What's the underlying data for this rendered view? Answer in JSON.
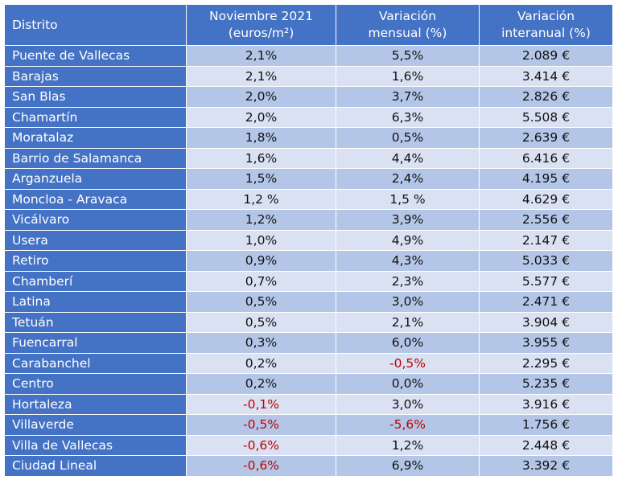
{
  "table": {
    "headers": [
      {
        "line1": "Distrito",
        "line2": ""
      },
      {
        "line1": "Noviembre 2021",
        "line2": "(euros/m²)"
      },
      {
        "line1": "Variación",
        "line2": "mensual (%)"
      },
      {
        "line1": "Variación",
        "line2": "interanual (%)"
      }
    ],
    "rows": [
      {
        "district": "Puente de Vallecas",
        "nov2021": "2,1%",
        "mensual": "5,5%",
        "interanual": "2.089 €"
      },
      {
        "district": "Barajas",
        "nov2021": "2,1%",
        "mensual": "1,6%",
        "interanual": "3.414 €"
      },
      {
        "district": "San Blas",
        "nov2021": "2,0%",
        "mensual": "3,7%",
        "interanual": "2.826 €"
      },
      {
        "district": "Chamartín",
        "nov2021": "2,0%",
        "mensual": "6,3%",
        "interanual": "5.508 €"
      },
      {
        "district": "Moratalaz",
        "nov2021": "1,8%",
        "mensual": "0,5%",
        "interanual": "2.639 €"
      },
      {
        "district": "Barrio de Salamanca",
        "nov2021": "1,6%",
        "mensual": "4,4%",
        "interanual": "6.416 €"
      },
      {
        "district": "Arganzuela",
        "nov2021": "1,5%",
        "mensual": "2,4%",
        "interanual": "4.195 €"
      },
      {
        "district": "Moncloa - Aravaca",
        "nov2021": "1,2 %",
        "mensual": "1,5 %",
        "interanual": "4.629 €"
      },
      {
        "district": "Vicálvaro",
        "nov2021": "1,2%",
        "mensual": "3,9%",
        "interanual": "2.556 €"
      },
      {
        "district": "Usera",
        "nov2021": "1,0%",
        "mensual": "4,9%",
        "interanual": "2.147 €"
      },
      {
        "district": "Retiro",
        "nov2021": "0,9%",
        "mensual": "4,3%",
        "interanual": "5.033 €"
      },
      {
        "district": "Chamberí",
        "nov2021": "0,7%",
        "mensual": "2,3%",
        "interanual": "5.577 €"
      },
      {
        "district": "Latina",
        "nov2021": "0,5%",
        "mensual": "3,0%",
        "interanual": "2.471 €"
      },
      {
        "district": "Tetuán",
        "nov2021": "0,5%",
        "mensual": "2,1%",
        "interanual": "3.904 €"
      },
      {
        "district": "Fuencarral",
        "nov2021": "0,3%",
        "mensual": "6,0%",
        "interanual": "3.955 €"
      },
      {
        "district": "Carabanchel",
        "nov2021": "0,2%",
        "mensual": "-0,5%",
        "interanual": "2.295 €"
      },
      {
        "district": "Centro",
        "nov2021": "0,2%",
        "mensual": "0,0%",
        "interanual": "5.235 €"
      },
      {
        "district": "Hortaleza",
        "nov2021": "-0,1%",
        "mensual": "3,0%",
        "interanual": "3.916 €"
      },
      {
        "district": "Villaverde",
        "nov2021": "-0,5%",
        "mensual": "-5,6%",
        "interanual": "1.756 €"
      },
      {
        "district": "Villa de Vallecas",
        "nov2021": "-0,6%",
        "mensual": "1,2%",
        "interanual": "2.448 €"
      },
      {
        "district": "Ciudad Lineal",
        "nov2021": "-0,6%",
        "mensual": "6,9%",
        "interanual": "3.392 €"
      }
    ]
  },
  "colors": {
    "header_bg": "#4472c4",
    "band_dark": "#b4c6e7",
    "band_light": "#d9e1f2",
    "negative_text": "#c00000"
  }
}
